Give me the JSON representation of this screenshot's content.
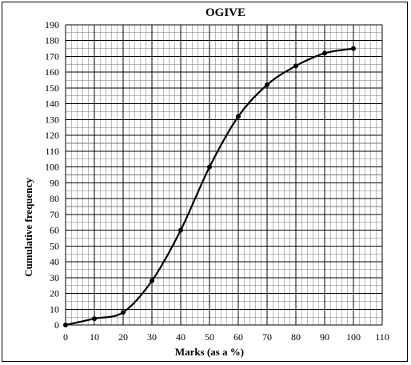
{
  "chart_data": {
    "type": "line",
    "title": "OGIVE",
    "xlabel": "Marks (as a %)",
    "ylabel": "Cumulative frequency",
    "x": [
      0,
      10,
      20,
      30,
      40,
      50,
      60,
      70,
      80,
      90,
      100
    ],
    "series": [
      {
        "values": [
          0,
          4,
          8,
          28,
          60,
          100,
          132,
          152,
          164,
          172,
          175
        ]
      }
    ],
    "xlim": [
      0,
      110
    ],
    "ylim": [
      0,
      190
    ],
    "x_ticks": [
      "0",
      "10",
      "20",
      "30",
      "40",
      "50",
      "60",
      "70",
      "80",
      "90",
      "100",
      "110"
    ],
    "y_ticks": [
      "0",
      "10",
      "20",
      "30",
      "40",
      "50",
      "60",
      "70",
      "80",
      "90",
      "100",
      "110",
      "120",
      "130",
      "140",
      "150",
      "160",
      "170",
      "180",
      "190"
    ],
    "grid": true,
    "minor_grid": true,
    "smooth": true,
    "markers": true,
    "line_color": "#000000",
    "grid_color": "#000000"
  }
}
